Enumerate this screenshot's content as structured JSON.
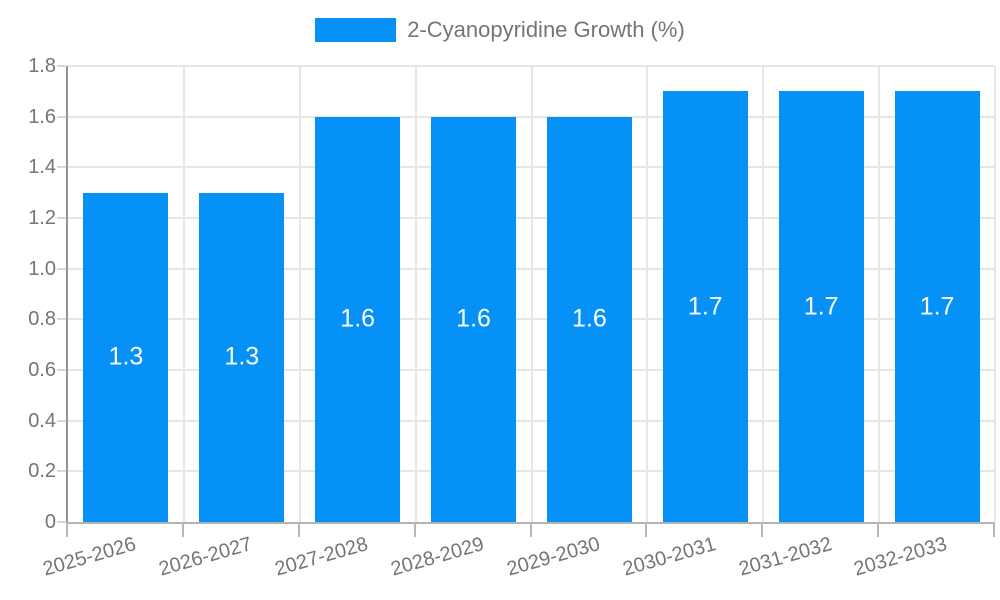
{
  "legend": {
    "label": "2-Cyanopyridine Growth (%)"
  },
  "colors": {
    "bar": "#0591f5",
    "bar_label_text": "#ffffff",
    "axis_text": "#757575",
    "grid": "#e6e6e6",
    "y_axis_line": "#949494",
    "x_axis_line": "#b3b3b3"
  },
  "chart_data": {
    "type": "bar",
    "title": "",
    "legend": "2-Cyanopyridine Growth (%)",
    "legend_position": "top-center",
    "categories": [
      "2025-2026",
      "2026-2027",
      "2027-2028",
      "2028-2029",
      "2029-2030",
      "2030-2031",
      "2031-2032",
      "2032-2033"
    ],
    "values": [
      1.3,
      1.3,
      1.6,
      1.6,
      1.6,
      1.7,
      1.7,
      1.7
    ],
    "bar_labels": [
      "1.3",
      "1.3",
      "1.6",
      "1.6",
      "1.6",
      "1.7",
      "1.7",
      "1.7"
    ],
    "xlabel": "",
    "ylabel": "",
    "ylim": [
      0,
      1.8
    ],
    "ytick_step": 0.2,
    "ytick_labels": [
      "0",
      "0.2",
      "0.4",
      "0.6",
      "0.8",
      "1.0",
      "1.2",
      "1.4",
      "1.6",
      "1.8"
    ],
    "grid": true
  }
}
